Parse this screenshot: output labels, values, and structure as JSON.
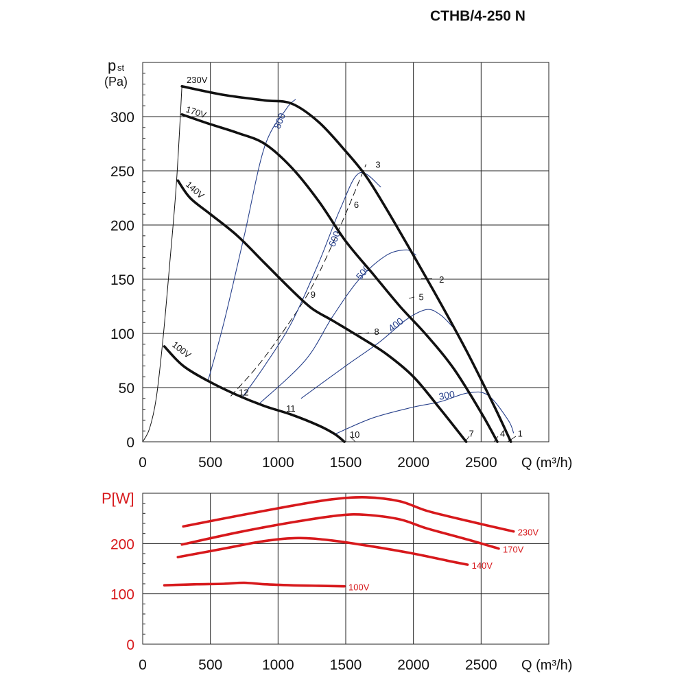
{
  "page": {
    "title": "CTHB/4-250 N"
  },
  "chart_data": [
    {
      "type": "line",
      "title": "CTHB/4-250 N",
      "ylabel": "p",
      "ylabel_sub": "st",
      "yunit": "(Pa)",
      "xlabel": "Q (m³/h)",
      "xlim": [
        0,
        3000
      ],
      "ylim": [
        0,
        350
      ],
      "xticks": [
        0,
        500,
        1000,
        1500,
        2000,
        2500
      ],
      "yticks": [
        0,
        50,
        100,
        150,
        200,
        250,
        300
      ],
      "grid": true,
      "series": [
        {
          "name": "230V",
          "color": "#111111",
          "x": [
            290,
            600,
            900,
            1100,
            1300,
            1500,
            1650,
            1800,
            2000,
            2200,
            2400,
            2600,
            2720
          ],
          "y": [
            328,
            320,
            315,
            312,
            295,
            268,
            245,
            215,
            172,
            128,
            82,
            32,
            0
          ]
        },
        {
          "name": "170V",
          "color": "#111111",
          "x": [
            290,
            500,
            700,
            900,
            1100,
            1300,
            1500,
            1700,
            1900,
            2100,
            2300,
            2500,
            2620
          ],
          "y": [
            302,
            293,
            285,
            275,
            253,
            222,
            185,
            155,
            125,
            98,
            67,
            27,
            0
          ]
        },
        {
          "name": "140V",
          "color": "#111111",
          "x": [
            260,
            350,
            500,
            700,
            900,
            1100,
            1250,
            1400,
            1600,
            1800,
            2000,
            2200,
            2390
          ],
          "y": [
            241,
            225,
            210,
            190,
            165,
            140,
            123,
            112,
            97,
            81,
            60,
            30,
            0
          ]
        },
        {
          "name": "100V",
          "color": "#111111",
          "x": [
            160,
            300,
            500,
            700,
            900,
            1100,
            1300,
            1420,
            1490
          ],
          "y": [
            88,
            70,
            55,
            43,
            33,
            25,
            15,
            7,
            0
          ]
        }
      ],
      "efficiency_lines": [
        {
          "label": "800",
          "x": [
            480,
            600,
            750,
            900,
            1060,
            1130
          ],
          "y": [
            55,
            110,
            190,
            272,
            307,
            316
          ]
        },
        {
          "label": "600",
          "x": [
            730,
            900,
            1100,
            1300,
            1460,
            1600,
            1760
          ],
          "y": [
            40,
            70,
            110,
            165,
            215,
            248,
            235
          ]
        },
        {
          "label": "500",
          "x": [
            860,
            1200,
            1400,
            1600,
            1800,
            1950,
            2020
          ],
          "y": [
            35,
            75,
            115,
            150,
            172,
            177,
            172
          ]
        },
        {
          "label": "400",
          "x": [
            1170,
            1500,
            1750,
            1950,
            2100,
            2200,
            2290
          ],
          "y": [
            40,
            70,
            92,
            113,
            122,
            117,
            106
          ]
        },
        {
          "label": "300",
          "x": [
            1420,
            1700,
            2000,
            2200,
            2400,
            2550,
            2700,
            2740
          ],
          "y": [
            7,
            22,
            32,
            37,
            45,
            43,
            20,
            8
          ]
        }
      ],
      "system_lines": [
        {
          "style": "solid",
          "x": [
            0,
            50,
            100,
            150,
            200,
            250,
            290
          ],
          "y": [
            0,
            12,
            40,
            95,
            165,
            240,
            328
          ]
        },
        {
          "style": "dashed",
          "x": [
            650,
            850,
            1050,
            1250,
            1450,
            1650
          ],
          "y": [
            42,
            70,
            104,
            143,
            196,
            256
          ]
        }
      ],
      "point_labels": [
        {
          "text": "1",
          "x": 2770,
          "y": 8
        },
        {
          "text": "2",
          "x": 2190,
          "y": 150
        },
        {
          "text": "3",
          "x": 1720,
          "y": 256
        },
        {
          "text": "4",
          "x": 2640,
          "y": 8
        },
        {
          "text": "5",
          "x": 2040,
          "y": 134
        },
        {
          "text": "6",
          "x": 1560,
          "y": 219
        },
        {
          "text": "7",
          "x": 2410,
          "y": 8
        },
        {
          "text": "8",
          "x": 1710,
          "y": 102
        },
        {
          "text": "9",
          "x": 1240,
          "y": 136
        },
        {
          "text": "10",
          "x": 1530,
          "y": 7
        },
        {
          "text": "11",
          "x": 1060,
          "y": 31
        },
        {
          "text": "12",
          "x": 710,
          "y": 46
        }
      ]
    },
    {
      "type": "line",
      "ylabel": "P[W]",
      "xlabel": "Q (m³/h)",
      "xlim": [
        0,
        3000
      ],
      "ylim": [
        0,
        300
      ],
      "xticks": [
        0,
        500,
        1000,
        1500,
        2000,
        2500
      ],
      "yticks": [
        0,
        100,
        200
      ],
      "grid": true,
      "accent": "#d7191c",
      "series": [
        {
          "name": "230V",
          "color": "#d7191c",
          "x": [
            300,
            700,
            1100,
            1400,
            1650,
            1900,
            2100,
            2400,
            2740
          ],
          "y": [
            234,
            255,
            275,
            288,
            292,
            284,
            265,
            245,
            224
          ]
        },
        {
          "name": "170V",
          "color": "#d7191c",
          "x": [
            290,
            700,
            1100,
            1450,
            1650,
            1900,
            2100,
            2400,
            2630
          ],
          "y": [
            198,
            222,
            242,
            256,
            257,
            248,
            230,
            208,
            190
          ]
        },
        {
          "name": "140V",
          "color": "#d7191c",
          "x": [
            260,
            600,
            900,
            1150,
            1400,
            1700,
            2000,
            2250,
            2400
          ],
          "y": [
            173,
            190,
            205,
            211,
            206,
            194,
            180,
            166,
            158
          ]
        },
        {
          "name": "100V",
          "color": "#d7191c",
          "x": [
            160,
            400,
            600,
            750,
            900,
            1100,
            1300,
            1490
          ],
          "y": [
            117,
            119,
            120,
            122,
            119,
            117,
            116,
            115
          ]
        }
      ]
    }
  ]
}
